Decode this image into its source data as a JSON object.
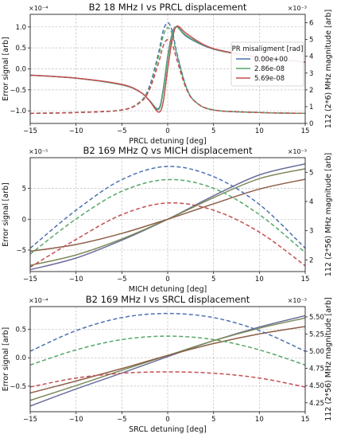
{
  "colors": {
    "series_1": "#4c72b0",
    "series_2": "#55a868",
    "series_3": "#c44e52",
    "mix_1": "#6a6f9a",
    "mix_2": "#7d8a5a",
    "mix_3": "#8c5e46",
    "grid": "#bdbdbd"
  },
  "chart_data": [
    {
      "type": "line",
      "title": "B2 18 MHz I vs PRCL displacement",
      "xlabel": "PRCL detuning [deg]",
      "ylabel": "Error signal [arb]",
      "ylabel_right": "112 (2*6) MHz magnitude [arb]",
      "left_multiplier": "×10⁻⁴",
      "right_multiplier": "×10⁻³",
      "xlim": [
        -15,
        15
      ],
      "ylim": [
        -1.3,
        1.3
      ],
      "ylim_right": [
        0,
        6.5
      ],
      "xticks": [
        "−15",
        "−10",
        "−5",
        "0",
        "5",
        "10",
        "15"
      ],
      "yticks": [
        "−1.0",
        "−0.5",
        "0.0",
        "0.5",
        "1.0"
      ],
      "yticks_right": [
        "0",
        "1",
        "2",
        "3",
        "4",
        "5",
        "6"
      ],
      "legend": {
        "title": "PR misaligment [rad]",
        "entries": [
          "0.00e+00",
          "2.86e-08",
          "5.69e-08"
        ],
        "placement": "center-right"
      },
      "grid": true,
      "series": [
        {
          "name": "0.00e+00",
          "axis": "left",
          "style": "solid",
          "x": [
            -15,
            -10,
            -5,
            -3,
            -2,
            -1,
            -0.5,
            0,
            0.5,
            1,
            2,
            4,
            6,
            10,
            15
          ],
          "values": [
            -0.15,
            -0.22,
            -0.38,
            -0.55,
            -0.75,
            -0.95,
            -0.5,
            0.3,
            0.85,
            1.0,
            0.78,
            0.55,
            0.42,
            0.28,
            0.16
          ]
        },
        {
          "name": "2.86e-08",
          "axis": "left",
          "style": "solid",
          "x": [
            -15,
            -10,
            -5,
            -3,
            -2,
            -1,
            -0.5,
            0,
            0.5,
            1,
            2,
            4,
            6,
            10,
            15
          ],
          "values": [
            -0.15,
            -0.22,
            -0.38,
            -0.55,
            -0.75,
            -0.97,
            -0.55,
            0.25,
            0.82,
            1.0,
            0.8,
            0.56,
            0.42,
            0.28,
            0.16
          ]
        },
        {
          "name": "5.69e-08",
          "axis": "left",
          "style": "solid",
          "x": [
            -15,
            -10,
            -5,
            -3,
            -2,
            -1,
            -0.5,
            0,
            0.5,
            1,
            2,
            4,
            6,
            10,
            15
          ],
          "values": [
            -0.15,
            -0.22,
            -0.37,
            -0.55,
            -0.76,
            -1.03,
            -0.8,
            0.0,
            0.7,
            1.02,
            0.85,
            0.57,
            0.43,
            0.28,
            0.16
          ]
        },
        {
          "name": "0.00e+00",
          "axis": "right",
          "style": "dashed",
          "x": [
            -15,
            -10,
            -5,
            -3,
            -2,
            -1,
            -0.5,
            0,
            0.5,
            1,
            2,
            3,
            5,
            10,
            15
          ],
          "values": [
            0.6,
            0.65,
            0.8,
            1.3,
            2.2,
            4.2,
            5.5,
            6.0,
            5.5,
            4.2,
            2.2,
            1.3,
            0.8,
            0.65,
            0.6
          ]
        },
        {
          "name": "2.86e-08",
          "axis": "right",
          "style": "dashed",
          "x": [
            -15,
            -10,
            -5,
            -3,
            -2,
            -1,
            -0.5,
            0,
            0.5,
            1,
            2,
            3,
            5,
            10,
            15
          ],
          "values": [
            0.6,
            0.65,
            0.8,
            1.3,
            2.1,
            4.0,
            5.2,
            5.7,
            5.3,
            4.1,
            2.2,
            1.3,
            0.8,
            0.65,
            0.6
          ]
        },
        {
          "name": "5.69e-08",
          "axis": "right",
          "style": "dashed",
          "x": [
            -15,
            -10,
            -5,
            -3,
            -2,
            -1,
            -0.5,
            0,
            0.5,
            1,
            2,
            3,
            5,
            10,
            15
          ],
          "values": [
            0.6,
            0.65,
            0.8,
            1.25,
            2.0,
            3.6,
            4.6,
            5.0,
            4.7,
            3.8,
            2.1,
            1.3,
            0.8,
            0.65,
            0.6
          ]
        }
      ]
    },
    {
      "type": "line",
      "title": "B2 169 MHz Q vs MICH displacement",
      "xlabel": "MICH detuning [deg]",
      "ylabel": "Error signal [arb]",
      "ylabel_right": "112 (2*56) MHz magnitude [arb]",
      "left_multiplier": "×10⁻⁵",
      "right_multiplier": "×10⁻³",
      "xlim": [
        -15,
        15
      ],
      "ylim": [
        -8.5,
        10
      ],
      "ylim_right": [
        1.6,
        5.5
      ],
      "xticks": [
        "−15",
        "−10",
        "−5",
        "0",
        "5",
        "10",
        "15"
      ],
      "yticks": [
        "−5",
        "0",
        "5"
      ],
      "yticks_right": [
        "2",
        "3",
        "4",
        "5"
      ],
      "grid": true,
      "series": [
        {
          "name": "0.00e+00",
          "axis": "left",
          "style": "solid",
          "x": [
            -15,
            -10,
            -5,
            0,
            5,
            10,
            15
          ],
          "values": [
            -8.2,
            -6.3,
            -3.4,
            0.0,
            3.8,
            7.2,
            9.0
          ]
        },
        {
          "name": "2.86e-08",
          "axis": "left",
          "style": "solid",
          "x": [
            -15,
            -10,
            -5,
            0,
            5,
            10,
            15
          ],
          "values": [
            -7.5,
            -5.8,
            -3.2,
            0.0,
            3.5,
            6.6,
            8.2
          ]
        },
        {
          "name": "5.69e-08",
          "axis": "left",
          "style": "solid",
          "x": [
            -15,
            -10,
            -5,
            0,
            5,
            10,
            15
          ],
          "values": [
            -5.2,
            -4.1,
            -2.3,
            0.0,
            2.5,
            4.9,
            6.5
          ]
        },
        {
          "name": "0.00e+00",
          "axis": "right",
          "style": "dashed",
          "x": [
            -15,
            -10,
            -5,
            0,
            5,
            10,
            15
          ],
          "values": [
            2.4,
            3.7,
            4.75,
            5.2,
            4.85,
            3.9,
            2.4
          ]
        },
        {
          "name": "2.86e-08",
          "axis": "right",
          "style": "dashed",
          "x": [
            -15,
            -10,
            -5,
            0,
            5,
            10,
            15
          ],
          "values": [
            2.2,
            3.4,
            4.35,
            4.75,
            4.45,
            3.55,
            2.25
          ]
        },
        {
          "name": "5.69e-08",
          "axis": "right",
          "style": "dashed",
          "x": [
            -15,
            -10,
            -5,
            0,
            5,
            10,
            15
          ],
          "values": [
            1.75,
            2.7,
            3.55,
            3.95,
            3.7,
            2.95,
            1.8
          ]
        }
      ]
    },
    {
      "type": "line",
      "title": "B2 169 MHz I vs SRCL displacement",
      "xlabel": "SRCL detuning [deg]",
      "ylabel": "Error signal [arb]",
      "ylabel_right": "112 (2*56) MHz magnitude [arb]",
      "left_multiplier": "×10⁻⁴",
      "right_multiplier": "×10⁻³",
      "xlim": [
        -15,
        15
      ],
      "ylim": [
        -0.95,
        0.9
      ],
      "ylim_right": [
        4.12,
        5.65
      ],
      "xticks": [
        "−15",
        "−10",
        "−5",
        "0",
        "5",
        "10",
        "15"
      ],
      "yticks": [
        "−0.5",
        "0.0",
        "0.5"
      ],
      "yticks_right": [
        "4.25",
        "4.50",
        "4.75",
        "5.00",
        "5.25",
        "5.50"
      ],
      "grid": true,
      "series": [
        {
          "name": "0.00e+00",
          "axis": "left",
          "style": "solid",
          "x": [
            -15,
            -10,
            -5,
            0,
            5,
            10,
            15
          ],
          "values": [
            -0.85,
            -0.55,
            -0.27,
            0.02,
            0.3,
            0.54,
            0.74
          ]
        },
        {
          "name": "2.86e-08",
          "axis": "left",
          "style": "solid",
          "x": [
            -15,
            -10,
            -5,
            0,
            5,
            10,
            15
          ],
          "values": [
            -0.75,
            -0.49,
            -0.22,
            0.04,
            0.3,
            0.52,
            0.7
          ]
        },
        {
          "name": "5.69e-08",
          "axis": "left",
          "style": "solid",
          "x": [
            -15,
            -10,
            -5,
            0,
            5,
            10,
            15
          ],
          "values": [
            -0.62,
            -0.41,
            -0.19,
            0.04,
            0.25,
            0.42,
            0.55
          ]
        },
        {
          "name": "0.00e+00",
          "axis": "right",
          "style": "dashed",
          "x": [
            -15,
            -10,
            -5,
            0,
            5,
            10,
            15
          ],
          "values": [
            5.0,
            5.3,
            5.49,
            5.55,
            5.49,
            5.3,
            5.0
          ]
        },
        {
          "name": "2.86e-08",
          "axis": "right",
          "style": "dashed",
          "x": [
            -15,
            -10,
            -5,
            0,
            5,
            10,
            15
          ],
          "values": [
            4.8,
            5.02,
            5.17,
            5.22,
            5.17,
            5.02,
            4.8
          ]
        },
        {
          "name": "5.69e-08",
          "axis": "right",
          "style": "dashed",
          "x": [
            -15,
            -10,
            -5,
            0,
            5,
            10,
            15
          ],
          "values": [
            4.48,
            4.61,
            4.68,
            4.7,
            4.68,
            4.61,
            4.48
          ]
        }
      ]
    }
  ]
}
